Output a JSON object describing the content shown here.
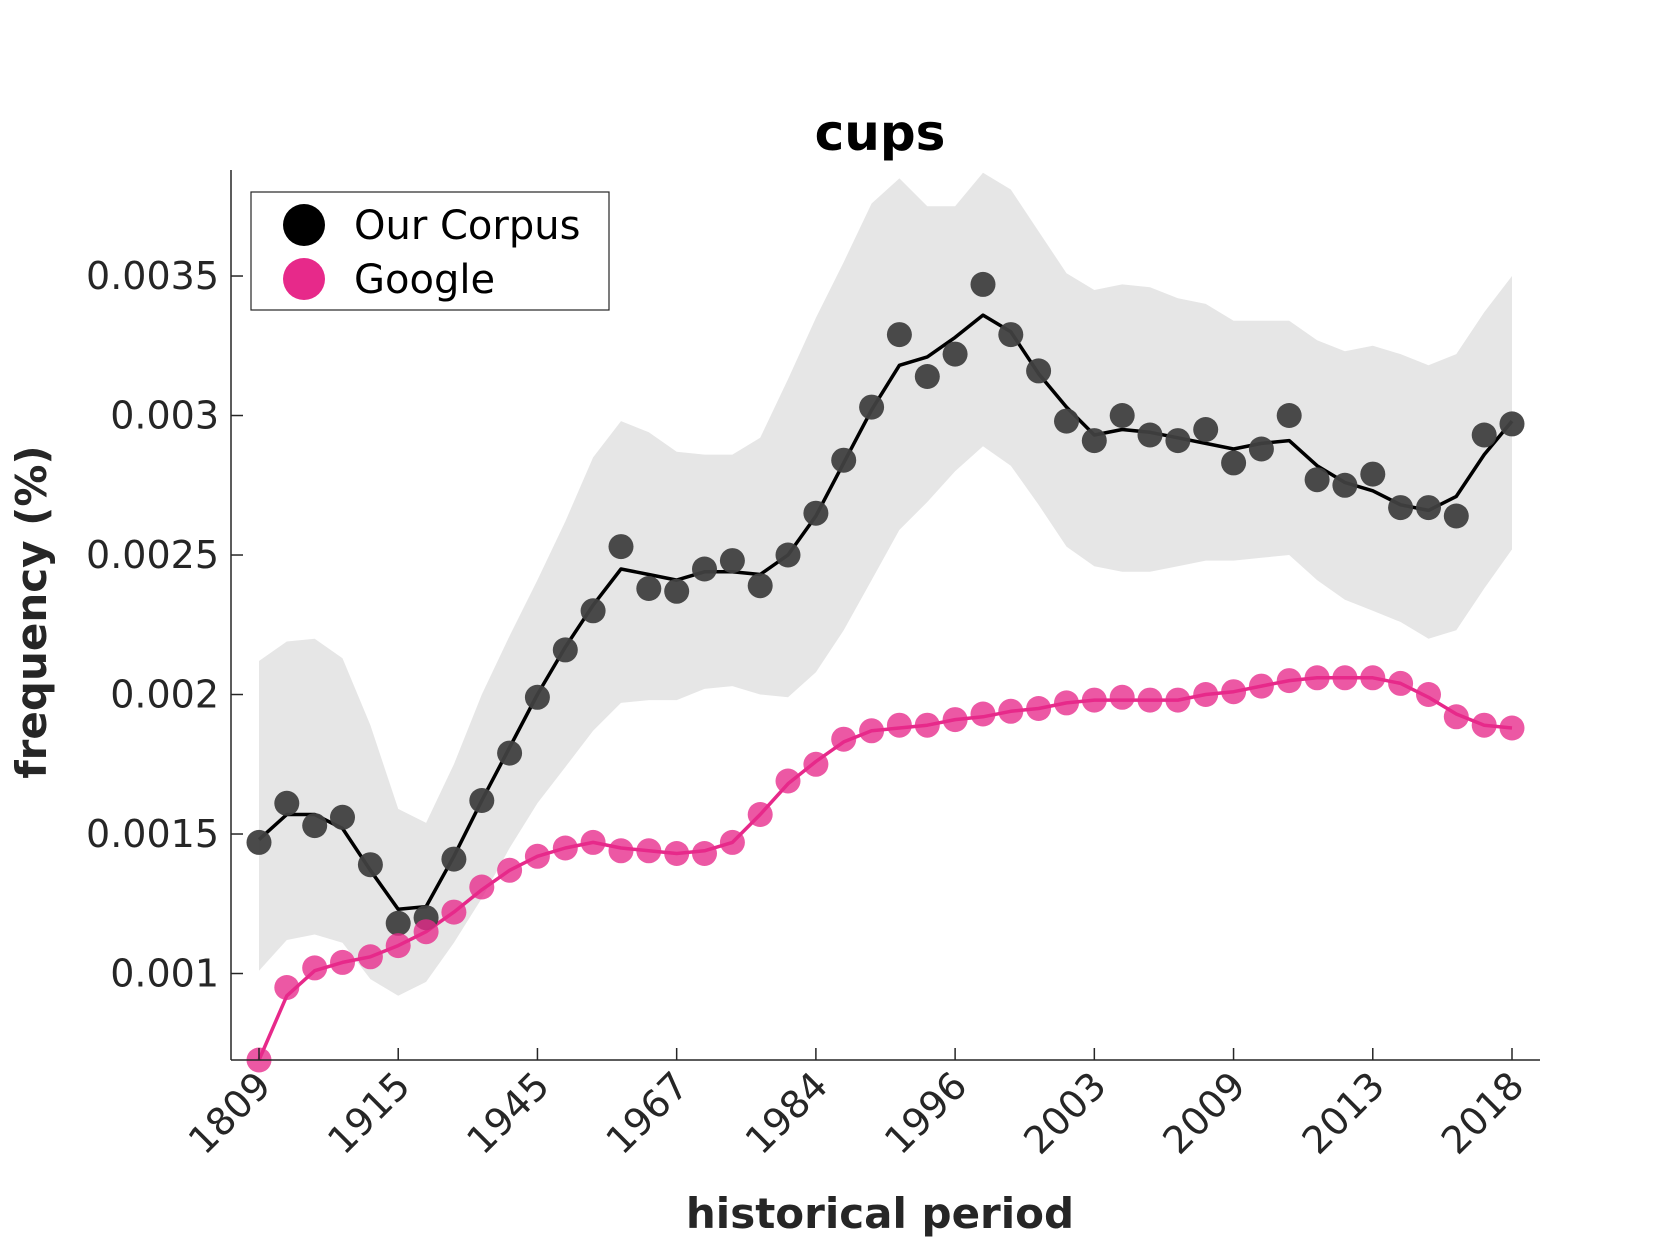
{
  "chart_data": {
    "type": "line",
    "title": "cups",
    "xlabel": "historical period",
    "ylabel": "frequency (%)",
    "x_tick_labels": [
      "1809",
      "1915",
      "1945",
      "1967",
      "1984",
      "1996",
      "2003",
      "2009",
      "2013",
      "2018"
    ],
    "y_ticks": [
      0.001,
      0.0015,
      0.002,
      0.0025,
      0.003,
      0.0035
    ],
    "y_tick_labels": [
      "0.001",
      "0.0015",
      "0.002",
      "0.0025",
      "0.003",
      "0.0035"
    ],
    "ylim": [
      0.00069,
      0.00388
    ],
    "x_count": 46,
    "grid": false,
    "legend_position": "top-left",
    "series": [
      {
        "name": "Our Corpus",
        "color": "#404040",
        "line_color": "#000000",
        "points": [
          0.00147,
          0.00161,
          0.00153,
          0.00156,
          0.00139,
          0.00118,
          0.0012,
          0.00141,
          0.00162,
          0.00179,
          0.00199,
          0.00216,
          0.0023,
          0.00253,
          0.00238,
          0.00237,
          0.00245,
          0.00248,
          0.00239,
          0.0025,
          0.00265,
          0.00284,
          0.00303,
          0.00329,
          0.00314,
          0.00322,
          0.00347,
          0.00329,
          0.00316,
          0.00298,
          0.00291,
          0.003,
          0.00293,
          0.00291,
          0.00295,
          0.00283,
          0.00288,
          0.003,
          0.00277,
          0.00275,
          0.00279,
          0.00267,
          0.00267,
          0.00264,
          0.00293,
          0.00297
        ],
        "trend": [
          0.00148,
          0.00157,
          0.00157,
          0.00152,
          0.00137,
          0.00123,
          0.00124,
          0.00142,
          0.00162,
          0.00181,
          0.002,
          0.00217,
          0.00232,
          0.00245,
          0.00243,
          0.00241,
          0.00244,
          0.00244,
          0.00243,
          0.0025,
          0.00264,
          0.00283,
          0.00302,
          0.00318,
          0.00321,
          0.00328,
          0.00336,
          0.0033,
          0.00315,
          0.00303,
          0.00293,
          0.00295,
          0.00294,
          0.00292,
          0.0029,
          0.00288,
          0.0029,
          0.00291,
          0.00282,
          0.00276,
          0.00273,
          0.00268,
          0.00266,
          0.00271,
          0.00286,
          0.00298
        ],
        "band_upper": [
          0.00212,
          0.00219,
          0.0022,
          0.00213,
          0.00189,
          0.00159,
          0.00154,
          0.00175,
          0.002,
          0.00221,
          0.00241,
          0.00262,
          0.00285,
          0.00298,
          0.00294,
          0.00287,
          0.00286,
          0.00286,
          0.00292,
          0.00313,
          0.00335,
          0.00355,
          0.00376,
          0.00385,
          0.00375,
          0.00375,
          0.00387,
          0.00381,
          0.00366,
          0.00351,
          0.00345,
          0.00347,
          0.00346,
          0.00342,
          0.0034,
          0.00334,
          0.00334,
          0.00334,
          0.00327,
          0.00323,
          0.00325,
          0.00322,
          0.00318,
          0.00322,
          0.00337,
          0.0035
        ],
        "band_lower": [
          0.00101,
          0.00112,
          0.00114,
          0.00111,
          0.00098,
          0.00092,
          0.00097,
          0.00111,
          0.00127,
          0.00145,
          0.00161,
          0.00174,
          0.00187,
          0.00197,
          0.00198,
          0.00198,
          0.00202,
          0.00203,
          0.002,
          0.00199,
          0.00208,
          0.00223,
          0.00241,
          0.00259,
          0.00269,
          0.0028,
          0.00289,
          0.00282,
          0.00268,
          0.00253,
          0.00246,
          0.00244,
          0.00244,
          0.00246,
          0.00248,
          0.00248,
          0.00249,
          0.0025,
          0.00241,
          0.00234,
          0.0023,
          0.00226,
          0.0022,
          0.00223,
          0.00238,
          0.00252
        ]
      },
      {
        "name": "Google",
        "color": "#e7298a",
        "line_color": "#e7298a",
        "points": [
          0.00069,
          0.00095,
          0.00102,
          0.00104,
          0.00106,
          0.0011,
          0.00115,
          0.00122,
          0.00131,
          0.00137,
          0.00142,
          0.00145,
          0.00147,
          0.00144,
          0.00144,
          0.00143,
          0.00143,
          0.00147,
          0.00157,
          0.00169,
          0.00175,
          0.00184,
          0.00187,
          0.00189,
          0.00189,
          0.00191,
          0.00193,
          0.00194,
          0.00195,
          0.00197,
          0.00198,
          0.00199,
          0.00198,
          0.00198,
          0.002,
          0.00201,
          0.00203,
          0.00205,
          0.00206,
          0.00206,
          0.00206,
          0.00204,
          0.002,
          0.00192,
          0.00189,
          0.00188
        ],
        "trend": [
          0.00069,
          0.00092,
          0.00101,
          0.00104,
          0.00106,
          0.0011,
          0.00115,
          0.00122,
          0.0013,
          0.00137,
          0.00142,
          0.00145,
          0.00147,
          0.00145,
          0.00144,
          0.00143,
          0.00144,
          0.00147,
          0.00157,
          0.00168,
          0.00176,
          0.00183,
          0.00187,
          0.00188,
          0.00189,
          0.00191,
          0.00192,
          0.00194,
          0.00195,
          0.00197,
          0.00198,
          0.00198,
          0.00198,
          0.00198,
          0.002,
          0.00201,
          0.00203,
          0.00205,
          0.00206,
          0.00206,
          0.00206,
          0.00204,
          0.00199,
          0.00193,
          0.00189,
          0.00188
        ]
      }
    ]
  }
}
